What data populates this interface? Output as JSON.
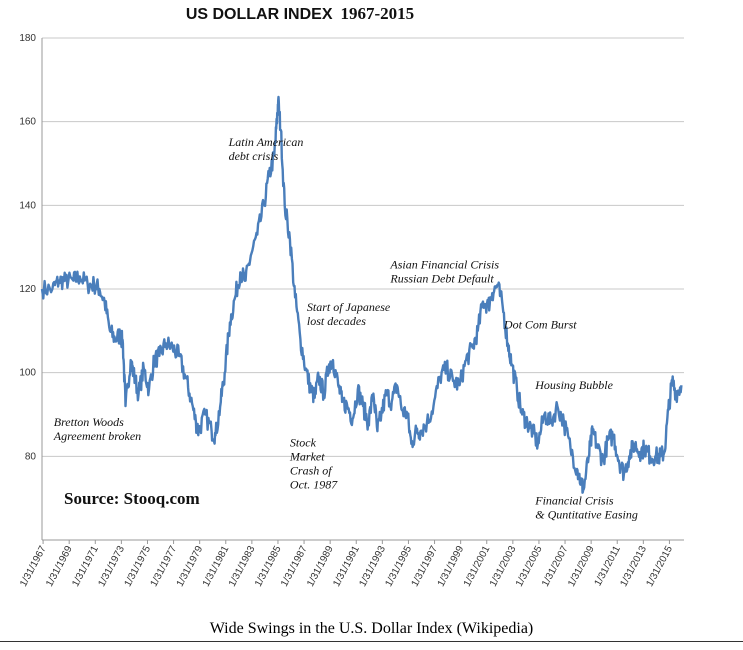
{
  "chart_data": {
    "type": "line",
    "title_part1": "US DOLLAR INDEX",
    "title_part2": "1967-2015",
    "xlabel": "",
    "ylabel": "",
    "ylim": [
      60,
      180
    ],
    "yticks": [
      80,
      100,
      120,
      140,
      160,
      180
    ],
    "xlim": [
      1967,
      2016.2
    ],
    "xtick_labels": [
      "1/31/1967",
      "1/31/1969",
      "1/31/1971",
      "1/31/1973",
      "1/31/1975",
      "1/31/1977",
      "1/31/1979",
      "1/31/1981",
      "1/31/1983",
      "1/31/1985",
      "1/31/1987",
      "1/31/1989",
      "1/31/1991",
      "1/31/1993",
      "1/31/1995",
      "1/31/1997",
      "1/31/1999",
      "1/31/2001",
      "1/31/2003",
      "1/31/2005",
      "1/31/2007",
      "1/31/2009",
      "1/31/2011",
      "1/31/2013",
      "1/31/2015"
    ],
    "grid": "horizontal",
    "series_color": "#4a7ebb",
    "series": [
      {
        "x": [
          1967.0,
          1967.8,
          1968.3,
          1968.8,
          1969.4,
          1969.9,
          1970.5,
          1971.0,
          1971.4,
          1971.8,
          1972.2,
          1972.6,
          1973.0,
          1973.2,
          1973.4,
          1973.8,
          1974.0,
          1974.4,
          1974.8,
          1975.2,
          1975.6,
          1976.0,
          1976.5,
          1977.0,
          1977.5,
          1978.0,
          1978.4,
          1978.8,
          1979.0,
          1979.5,
          1980.0,
          1980.3,
          1980.7,
          1981.0,
          1981.4,
          1981.8,
          1982.2,
          1982.6,
          1983.0,
          1983.5,
          1984.0,
          1984.4,
          1984.8,
          1985.0,
          1985.1,
          1985.3,
          1985.6,
          1986.0,
          1986.4,
          1986.8,
          1987.2,
          1987.6,
          1987.9,
          1988.2,
          1988.6,
          1989.0,
          1989.3,
          1989.7,
          1990.0,
          1990.4,
          1990.8,
          1991.2,
          1991.6,
          1992.0,
          1992.4,
          1992.7,
          1993.0,
          1993.4,
          1993.8,
          1994.2,
          1994.6,
          1995.0,
          1995.3,
          1995.7,
          1996.0,
          1996.5,
          1997.0,
          1997.5,
          1998.0,
          1998.5,
          1999.0,
          1999.5,
          2000.0,
          2000.4,
          2000.8,
          2001.2,
          2001.5,
          2001.9,
          2002.3,
          2002.7,
          2003.0,
          2003.4,
          2003.8,
          2004.2,
          2004.6,
          2005.0,
          2005.5,
          2006.0,
          2006.5,
          2007.0,
          2007.5,
          2008.0,
          2008.3,
          2008.5,
          2008.9,
          2009.2,
          2009.6,
          2010.0,
          2010.4,
          2010.8,
          2011.2,
          2011.6,
          2012.0,
          2012.4,
          2012.8,
          2013.2,
          2013.6,
          2014.0,
          2014.4,
          2014.7,
          2015.0,
          2015.3,
          2015.6,
          2016.0
        ],
        "values": [
          120,
          120,
          122,
          122,
          122,
          123,
          121,
          121,
          120,
          117,
          110,
          108,
          109,
          107,
          92,
          103,
          100,
          95,
          101,
          96,
          103,
          104,
          107,
          106,
          104,
          99,
          94,
          88,
          86,
          90,
          86,
          85,
          93,
          100,
          112,
          118,
          124,
          122,
          128,
          133,
          140,
          147,
          152,
          160,
          165,
          158,
          140,
          132,
          118,
          108,
          101,
          96,
          94,
          99,
          95,
          102,
          103,
          97,
          93,
          92,
          89,
          96,
          92,
          88,
          95,
          86,
          90,
          95,
          93,
          97,
          91,
          90,
          83,
          86,
          86,
          88,
          92,
          99,
          101,
          98,
          97,
          103,
          106,
          110,
          117,
          116,
          119,
          121,
          116,
          107,
          102,
          96,
          90,
          88,
          86,
          83,
          90,
          88,
          92,
          88,
          82,
          77,
          74,
          72,
          80,
          86,
          82,
          79,
          84,
          85,
          79,
          76,
          80,
          83,
          81,
          82,
          80,
          80,
          80,
          81,
          91,
          98,
          95,
          97
        ]
      }
    ],
    "annotations": [
      {
        "lines": [
          "Bretton Woods",
          "Agreement broken"
        ],
        "x": 1967.9,
        "y": 87.3
      },
      {
        "lines": [
          "Latin American",
          "debt crisis"
        ],
        "x": 1981.3,
        "y": 154.2
      },
      {
        "lines": [
          "Stock",
          "Market",
          "Crash of",
          "Oct. 1987"
        ],
        "x": 1986.0,
        "y": 82.3
      },
      {
        "lines": [
          "Start of Japanese",
          "lost decades"
        ],
        "x": 1987.3,
        "y": 114.7
      },
      {
        "lines": [
          "Asian Financial Crisis",
          "Russian Debt Default"
        ],
        "x": 1993.7,
        "y": 124.9
      },
      {
        "lines": [
          "Dot Com Burst"
        ],
        "x": 2002.4,
        "y": 110.5
      },
      {
        "lines": [
          "Housing Bubble"
        ],
        "x": 2004.8,
        "y": 96.1
      },
      {
        "lines": [
          "Financial Crisis",
          "& Quntitative Easing"
        ],
        "x": 2004.8,
        "y": 68.5
      }
    ],
    "source_label": "Source: Stooq.com"
  },
  "caption": "Wide Swings in the U.S. Dollar Index (Wikipedia)"
}
